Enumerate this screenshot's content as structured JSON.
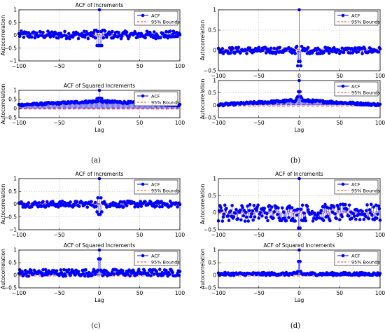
{
  "panel_labels": [
    "(a)",
    "(b)",
    "(c)",
    "(d)"
  ],
  "colors": {
    "series": "#0000ff",
    "bounds": "#ff3333",
    "axis": "#000000",
    "grid": "#b0b0b0"
  },
  "chart_data": [
    {
      "panel": "(a)",
      "title": "ACF of Increments",
      "type": "scatter",
      "xlabel": "",
      "ylabel": "Autocorrelation",
      "xlim": [
        -100,
        100
      ],
      "ylim": [
        -1,
        1
      ],
      "xticks": [
        -100,
        -50,
        0,
        50,
        100
      ],
      "xtick_labels": [
        "−100",
        "−50",
        "0",
        "50",
        "100"
      ],
      "yticks": [
        -1,
        -0.5,
        0,
        0.5,
        1
      ],
      "ytick_labels": [
        "−1",
        "−0.5",
        "0",
        "0.5",
        "1"
      ],
      "legend": {
        "position": "top-right",
        "entries": [
          "ACF",
          "95% Bounds"
        ]
      },
      "bounds": 0.03,
      "series": [
        {
          "name": "ACF",
          "x_range": [
            -100,
            100
          ],
          "lag0": 1,
          "center": {
            "-1": -0.4,
            "1": -0.4,
            "-2": 0.15,
            "2": 0.15,
            "-3": -0.4,
            "3": -0.4,
            "-4": 0.2,
            "4": 0.2,
            "-5": -0.1,
            "5": -0.1,
            "-6": 0.2,
            "6": 0.2
          },
          "noise_amplitude": 0.15,
          "baseline": 0.02
        }
      ]
    },
    {
      "panel": "(a)",
      "title": "ACF of Squared Increments",
      "type": "scatter",
      "xlabel": "Lag",
      "ylabel": "Autocorrelation",
      "xlim": [
        -100,
        100
      ],
      "ylim": [
        -0.5,
        1
      ],
      "xticks": [
        -100,
        -50,
        0,
        50,
        100
      ],
      "xtick_labels": [
        "−100",
        "−50",
        "0",
        "50",
        "100"
      ],
      "yticks": [
        -0.5,
        0,
        0.5,
        1
      ],
      "ytick_labels": [
        "−0.5",
        "0",
        "0.5",
        "1"
      ],
      "legend": {
        "position": "top-right",
        "entries": [
          "ACF",
          "95% Bounds"
        ]
      },
      "bounds": 0.03,
      "series": [
        {
          "name": "ACF",
          "x_range": [
            -100,
            100
          ],
          "lag0": 1,
          "center": {
            "-1": 0.57,
            "1": 0.57,
            "-2": 0.4,
            "2": 0.4,
            "-3": 0.55,
            "3": 0.55
          },
          "envelope": {
            "edge": 0.2,
            "middle": 0.4
          },
          "noise_amplitude": 0.06,
          "baseline": 0.0
        }
      ]
    },
    {
      "panel": "(b)",
      "title": "",
      "type": "scatter",
      "xlabel": "",
      "ylabel": "Autocorrelation",
      "xlim": [
        -100,
        100
      ],
      "ylim": [
        -0.5,
        1
      ],
      "xticks": [
        -100,
        -50,
        0,
        50,
        100
      ],
      "xtick_labels": [
        "−100",
        "−50",
        "0",
        "50",
        "100"
      ],
      "yticks": [
        -0.5,
        0,
        0.5,
        1
      ],
      "ytick_labels": [
        "−0.5",
        "0",
        "0.5",
        "1"
      ],
      "legend": {
        "position": "top-right",
        "entries": [
          "ACF",
          "95% Bounds"
        ]
      },
      "bounds": 0.03,
      "series": [
        {
          "name": "ACF",
          "x_range": [
            -100,
            100
          ],
          "lag0": 1,
          "center": {
            "-1": -0.27,
            "1": -0.27,
            "-2": -0.38,
            "2": -0.38,
            "-3": 0.1,
            "3": 0.1
          },
          "noise_amplitude": 0.08,
          "baseline": 0.0
        }
      ]
    },
    {
      "panel": "(b)",
      "title": "",
      "type": "scatter",
      "xlabel": "Lag",
      "ylabel": "Autocorrelation",
      "xlim": [
        -100,
        100
      ],
      "ylim": [
        -0.5,
        1
      ],
      "xticks": [
        -100,
        -50,
        0,
        50,
        100
      ],
      "xtick_labels": [
        "−100",
        "−50",
        "0",
        "50",
        "100"
      ],
      "yticks": [
        -0.5,
        0,
        0.5,
        1
      ],
      "ytick_labels": [
        "−0.5",
        "0",
        "0.5",
        "1"
      ],
      "legend": {
        "position": "top-right",
        "entries": [
          "ACF",
          "95% Bounds"
        ]
      },
      "bounds": 0.03,
      "series": [
        {
          "name": "ACF",
          "x_range": [
            -100,
            100
          ],
          "lag0": 1,
          "center": {
            "-1": 0.55,
            "1": 0.55,
            "-2": 0.35,
            "2": 0.35,
            "-3": 0.3,
            "3": 0.3
          },
          "envelope": {
            "edge": 0.02,
            "middle": 0.2
          },
          "noise_amplitude": 0.05,
          "baseline": 0.0
        }
      ]
    },
    {
      "panel": "(c)",
      "title": "ACF of Increments",
      "type": "scatter",
      "xlabel": "",
      "ylabel": "Autocorrelation",
      "xlim": [
        -100,
        100
      ],
      "ylim": [
        -1,
        1
      ],
      "xticks": [
        -100,
        -50,
        0,
        50,
        100
      ],
      "xtick_labels": [
        "−100",
        "−50",
        "0",
        "50",
        "100"
      ],
      "yticks": [
        -1,
        -0.5,
        0,
        0.5,
        1
      ],
      "ytick_labels": [
        "−1",
        "−0.5",
        "0",
        "0.5",
        "1"
      ],
      "legend": {
        "position": "top-right",
        "entries": [
          "ACF",
          "95% Bounds"
        ]
      },
      "bounds": 0.03,
      "series": [
        {
          "name": "ACF",
          "x_range": [
            -100,
            100
          ],
          "lag0": 1,
          "center": {
            "-1": -0.4,
            "1": -0.4,
            "-2": 0.25,
            "2": 0.25,
            "-3": -0.3,
            "3": -0.3
          },
          "noise_amplitude": 0.12,
          "baseline": 0.0
        }
      ]
    },
    {
      "panel": "(c)",
      "title": "ACF of Squared Increments",
      "type": "scatter",
      "xlabel": "Lag",
      "ylabel": "Autocorrelation",
      "xlim": [
        -100,
        100
      ],
      "ylim": [
        -0.5,
        1
      ],
      "xticks": [
        -100,
        -50,
        0,
        50,
        100
      ],
      "xtick_labels": [
        "−100",
        "−50",
        "0",
        "50",
        "100"
      ],
      "yticks": [
        -0.5,
        0,
        0.5,
        1
      ],
      "ytick_labels": [
        "−0.5",
        "0",
        "0.5",
        "1"
      ],
      "legend": {
        "position": "top-right",
        "entries": [
          "ACF",
          "95% Bounds"
        ]
      },
      "bounds": 0.03,
      "series": [
        {
          "name": "ACF",
          "x_range": [
            -100,
            100
          ],
          "lag0": 1,
          "center": {
            "-1": 0.65,
            "1": 0.65,
            "-2": 0.2,
            "2": 0.2,
            "-3": 0.15,
            "3": 0.15
          },
          "noise_amplitude": 0.14,
          "baseline": 0.1
        }
      ]
    },
    {
      "panel": "(d)",
      "title": "ACF of Increments",
      "type": "scatter",
      "xlabel": "",
      "ylabel": "Autocorrelation",
      "xlim": [
        -100,
        100
      ],
      "ylim": [
        -0.5,
        1
      ],
      "xticks": [
        -100,
        -50,
        0,
        50,
        100
      ],
      "xtick_labels": [
        "−100",
        "−50",
        "0",
        "50",
        "100"
      ],
      "yticks": [
        -0.5,
        0,
        0.5,
        1
      ],
      "ytick_labels": [
        "−0.5",
        "0",
        "0.5",
        "1"
      ],
      "legend": {
        "position": "top-right",
        "entries": [
          "ACF",
          "95% Bounds"
        ]
      },
      "bounds": 0.03,
      "series": [
        {
          "name": "ACF",
          "x_range": [
            -100,
            100
          ],
          "lag0": 1,
          "center": {
            "-1": -0.45,
            "1": -0.45,
            "-2": 0.1,
            "2": 0.1
          },
          "noise_amplitude": 0.25,
          "baseline": 0.0
        }
      ]
    },
    {
      "panel": "(d)",
      "title": "ACF of Squared Increments",
      "type": "scatter",
      "xlabel": "Lag",
      "ylabel": "Autocorrelation",
      "xlim": [
        -100,
        100
      ],
      "ylim": [
        -0.5,
        1
      ],
      "xticks": [
        -100,
        -50,
        0,
        50,
        100
      ],
      "xtick_labels": [
        "−100",
        "−50",
        "0",
        "50",
        "100"
      ],
      "yticks": [
        -0.5,
        0,
        0.5,
        1
      ],
      "ytick_labels": [
        "−0.5",
        "0",
        "0.5",
        "1"
      ],
      "legend": {
        "position": "top-right",
        "entries": [
          "ACF",
          "95% Bounds"
        ]
      },
      "bounds": 0.03,
      "series": [
        {
          "name": "ACF",
          "x_range": [
            -100,
            100
          ],
          "lag0": 1,
          "center": {
            "-1": 0.55,
            "1": 0.55,
            "-2": 0.15,
            "2": 0.15
          },
          "noise_amplitude": 0.06,
          "baseline": 0.05
        }
      ]
    }
  ]
}
